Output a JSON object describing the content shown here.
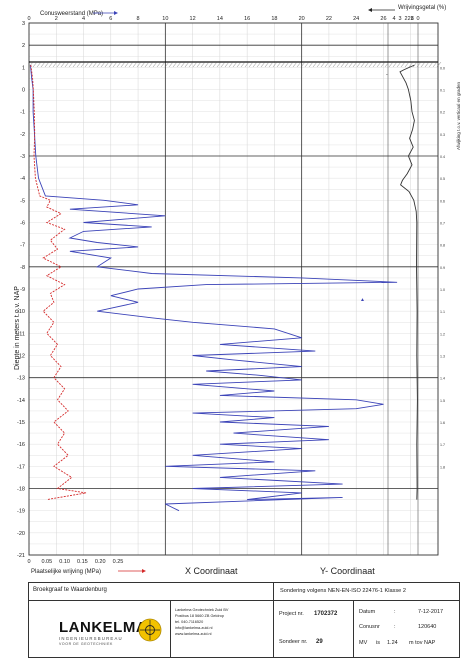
{
  "chart_data": {
    "type": "line",
    "top_axis_cone_label": "Conusweerstand (MPa)",
    "top_axis_friction_ratio_label": "Wrijvingsgetal (%)",
    "ylabel": "Diepte in meters t.o.v.  NAP",
    "bottom_axis_label": "Plaatselijke wrijving (MPa)",
    "right_vertical_label": "Afwijking t.o.v. verticaal en graden",
    "x_coordinate_label": "X Coordinaat",
    "y_coordinate_label": "Y- Coordinaat",
    "nap_marker_label": "-",
    "peak_label": "▲",
    "ylim": [
      -21,
      3
    ],
    "cone_xlim": [
      0,
      30
    ],
    "cone_ticks": [
      "0",
      "2",
      "4",
      "6",
      "8",
      "10",
      "12",
      "14",
      "16",
      "18",
      "20",
      "22",
      "24",
      "26",
      "28"
    ],
    "friction_ratio_ticks": [
      "4",
      "3",
      "2",
      "1",
      "0"
    ],
    "friction_ticks": [
      "0",
      "0.05",
      "0.10",
      "0.15",
      "0.20",
      "0.25"
    ],
    "y_ticks": [
      "3",
      "2",
      "1",
      "0",
      "-1",
      "-2",
      "-3",
      "-4",
      "-5",
      "-6",
      "-7",
      "-8",
      "-9",
      "-10",
      "-11",
      "-12",
      "-13",
      "-14",
      "-15",
      "-16",
      "-17",
      "-18",
      "-19",
      "-20",
      "-21"
    ],
    "angle_ticks": [
      "0.0",
      "0.1",
      "0.2",
      "0.3",
      "0.4",
      "0.5",
      "0.6",
      "0.7",
      "0.8",
      "0.9",
      "1.0",
      "1.1",
      "1.2",
      "1.3",
      "1.4",
      "1.5",
      "1.6",
      "1.7",
      "1.8"
    ],
    "ground_level": 1.24,
    "series": [
      {
        "name": "Conusweerstand (MPa)",
        "color": "#3c44b8",
        "points": [
          [
            0.1,
            1.1
          ],
          [
            0.2,
            0.5
          ],
          [
            0.3,
            0
          ],
          [
            0.3,
            -1
          ],
          [
            0.4,
            -2
          ],
          [
            0.5,
            -3
          ],
          [
            0.7,
            -4
          ],
          [
            1.2,
            -4.8
          ],
          [
            5.5,
            -5.0
          ],
          [
            8,
            -5.2
          ],
          [
            3,
            -5.4
          ],
          [
            10,
            -5.7
          ],
          [
            4,
            -6.0
          ],
          [
            9,
            -6.2
          ],
          [
            4,
            -6.4
          ],
          [
            3,
            -6.7
          ],
          [
            5,
            -6.9
          ],
          [
            8,
            -7.1
          ],
          [
            3,
            -7.3
          ],
          [
            6,
            -7.6
          ],
          [
            5,
            -8.0
          ],
          [
            9,
            -8.3
          ],
          [
            20,
            -8.5
          ],
          [
            27,
            -8.7
          ],
          [
            13,
            -8.8
          ],
          [
            8,
            -9.0
          ],
          [
            6,
            -9.3
          ],
          [
            8,
            -9.6
          ],
          [
            5,
            -10.0
          ],
          [
            9,
            -10.3
          ],
          [
            12,
            -10.5
          ],
          [
            18,
            -10.8
          ],
          [
            20,
            -11.2
          ],
          [
            14,
            -11.5
          ],
          [
            21,
            -11.8
          ],
          [
            12,
            -12.0
          ],
          [
            15,
            -12.2
          ],
          [
            20,
            -12.5
          ],
          [
            13,
            -12.7
          ],
          [
            17,
            -12.9
          ],
          [
            20,
            -13.1
          ],
          [
            12,
            -13.3
          ],
          [
            18,
            -13.6
          ],
          [
            14,
            -13.8
          ],
          [
            24,
            -14.0
          ],
          [
            26,
            -14.2
          ],
          [
            24,
            -14.4
          ],
          [
            12,
            -14.6
          ],
          [
            18,
            -14.8
          ],
          [
            14,
            -15.0
          ],
          [
            22,
            -15.2
          ],
          [
            15,
            -15.5
          ],
          [
            22,
            -15.8
          ],
          [
            14,
            -16.0
          ],
          [
            20,
            -16.2
          ],
          [
            12,
            -16.5
          ],
          [
            18,
            -16.8
          ],
          [
            10,
            -17.0
          ],
          [
            21,
            -17.2
          ],
          [
            14,
            -17.5
          ],
          [
            23,
            -17.8
          ],
          [
            12,
            -18.0
          ],
          [
            20,
            -18.2
          ],
          [
            16,
            -18.5
          ],
          [
            23,
            -18.4
          ],
          [
            10,
            -18.7
          ],
          [
            11,
            -19.0
          ]
        ]
      },
      {
        "name": "Plaatselijke wrijving (MPa)",
        "color": "#d42a2a",
        "points": [
          [
            0.005,
            1.1
          ],
          [
            0.01,
            0.5
          ],
          [
            0.012,
            0
          ],
          [
            0.015,
            -1
          ],
          [
            0.016,
            -2
          ],
          [
            0.014,
            -3
          ],
          [
            0.018,
            -4
          ],
          [
            0.03,
            -4.8
          ],
          [
            0.06,
            -5.0
          ],
          [
            0.05,
            -5.3
          ],
          [
            0.09,
            -5.6
          ],
          [
            0.05,
            -6.0
          ],
          [
            0.1,
            -6.3
          ],
          [
            0.06,
            -6.8
          ],
          [
            0.08,
            -7.2
          ],
          [
            0.04,
            -7.6
          ],
          [
            0.09,
            -8.0
          ],
          [
            0.05,
            -8.4
          ],
          [
            0.1,
            -8.8
          ],
          [
            0.06,
            -9.2
          ],
          [
            0.07,
            -9.6
          ],
          [
            0.04,
            -10.0
          ],
          [
            0.07,
            -10.5
          ],
          [
            0.05,
            -11.0
          ],
          [
            0.08,
            -11.5
          ],
          [
            0.06,
            -12.0
          ],
          [
            0.09,
            -12.5
          ],
          [
            0.07,
            -13.0
          ],
          [
            0.1,
            -13.5
          ],
          [
            0.08,
            -14.0
          ],
          [
            0.11,
            -14.5
          ],
          [
            0.07,
            -15.0
          ],
          [
            0.1,
            -15.5
          ],
          [
            0.08,
            -16.0
          ],
          [
            0.11,
            -16.5
          ],
          [
            0.07,
            -17.0
          ],
          [
            0.12,
            -17.5
          ],
          [
            0.08,
            -18.0
          ],
          [
            0.16,
            -18.2
          ],
          [
            0.05,
            -18.5
          ]
        ]
      },
      {
        "name": "Wrijvingsgetal (%)",
        "color": "#333333",
        "points": [
          [
            0.6,
            1.1
          ],
          [
            2.3,
            0.9
          ],
          [
            3.0,
            0.8
          ],
          [
            2.6,
            0.6
          ],
          [
            2.0,
            0.3
          ],
          [
            1.6,
            0
          ],
          [
            1.2,
            -0.5
          ],
          [
            1.0,
            -1.0
          ],
          [
            0.6,
            -1.4
          ],
          [
            0.9,
            -1.8
          ],
          [
            1.4,
            -2.2
          ],
          [
            0.8,
            -2.6
          ],
          [
            1.6,
            -3.0
          ],
          [
            1.0,
            -3.4
          ],
          [
            1.8,
            -3.8
          ],
          [
            2.6,
            -4.1
          ],
          [
            2.9,
            -4.3
          ],
          [
            1.5,
            -4.6
          ],
          [
            0.7,
            -5.0
          ],
          [
            0.3,
            -5.5
          ],
          [
            0.2,
            -6.0
          ],
          [
            0.25,
            -8.0
          ],
          [
            0.15,
            -10.0
          ],
          [
            0.2,
            -12.0
          ],
          [
            0.1,
            -14.0
          ],
          [
            0.2,
            -16.0
          ],
          [
            0.15,
            -18.0
          ],
          [
            0.2,
            -18.5
          ]
        ]
      }
    ]
  },
  "title_block": {
    "location": "Broekgraaf te Waardenburg",
    "standard": "Sondering volgens NEN-EN-ISO 22476-1 Klasse 2",
    "company_logo_text": "LANKELMA",
    "company_tagline": "INGENIEURSBUREAU",
    "company_sub": "VOOR DE GEOTECHNIEK",
    "address_lines": [
      "Lankelma Geotechniek Zuid BV",
      "Postbus 18  5660 ZB  Geldrop",
      "tel. 040-7116520",
      "info@lankelma-zuid.nl",
      "www.lankelma-zuid.nl"
    ],
    "project_label": "Project nr.",
    "project_value": "1702372",
    "sonding_label": "Sondeer nr.",
    "sonding_value": "29",
    "date_label": "Datum",
    "date_sep": ":",
    "date_value": "7-12-2017",
    "cone_label": "Conusnr",
    "cone_sep": ":",
    "cone_value": "120640",
    "mv_label": "MV",
    "mv_sep": "is",
    "mv_value": "1.24",
    "mv_unit": "m tov  NAP"
  }
}
